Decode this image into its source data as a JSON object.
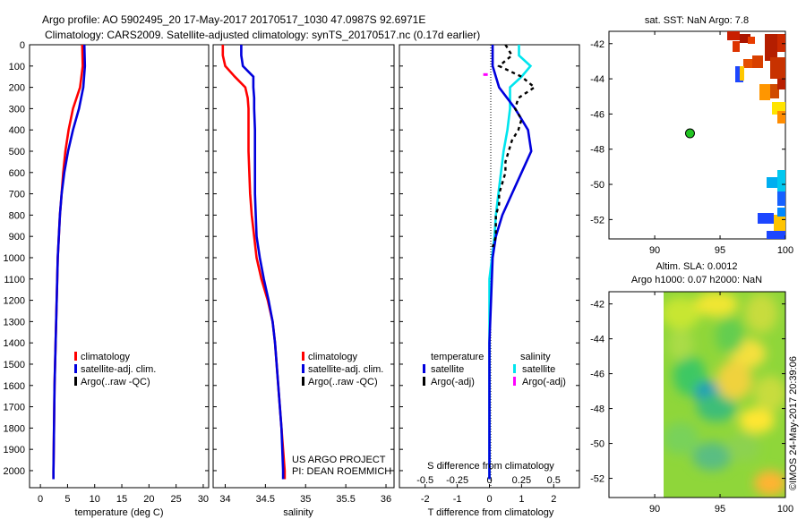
{
  "header": {
    "line1": "Argo profile: AO 5902495_20 17-May-2017 20170517_1030 47.0987S 92.6971E",
    "line2": "Climatology: CARS2009. Satellite-adjusted climatology: synTS_20170517.nc (0.17d earlier)"
  },
  "colors": {
    "climatology": "#ff0000",
    "satellite": "#0000dd",
    "argo": "#000000",
    "sat_salinity": "#00e5ee",
    "argo_salinity": "#ff00ff"
  },
  "chart_data": [
    {
      "type": "line",
      "panel": "temperature",
      "xlabel": "temperature (deg C)",
      "ylabel": "",
      "xlim": [
        -2,
        31
      ],
      "ylim": [
        2080,
        0
      ],
      "xticks": [
        "0",
        "5",
        "10",
        "15",
        "20",
        "25",
        "30"
      ],
      "yticks": [
        "0",
        "100",
        "200",
        "300",
        "400",
        "500",
        "600",
        "700",
        "800",
        "900",
        "1000",
        "1100",
        "1200",
        "1300",
        "1400",
        "1500",
        "1600",
        "1700",
        "1800",
        "1900",
        "2000"
      ],
      "legend": [
        "climatology",
        "satellite-adj. clim.",
        "Argo(..raw -QC)"
      ],
      "series": [
        {
          "name": "climatology",
          "y": [
            0,
            100,
            200,
            300,
            400,
            500,
            600,
            700,
            800,
            900,
            1000,
            1200,
            1400,
            1600,
            1800,
            2000,
            2040
          ],
          "values": [
            7.7,
            7.8,
            7.3,
            6.0,
            5.2,
            4.6,
            4.2,
            3.9,
            3.6,
            3.4,
            3.2,
            3.0,
            2.8,
            2.6,
            2.5,
            2.4,
            2.4
          ]
        },
        {
          "name": "satellite-adj. clim.",
          "y": [
            0,
            100,
            200,
            300,
            400,
            500,
            600,
            700,
            800,
            900,
            1000,
            1200,
            1400,
            1600,
            1800,
            2000,
            2040
          ],
          "values": [
            8.1,
            8.2,
            7.9,
            7.1,
            6.0,
            5.1,
            4.4,
            3.9,
            3.6,
            3.4,
            3.2,
            3.0,
            2.8,
            2.6,
            2.5,
            2.4,
            2.4
          ]
        }
      ]
    },
    {
      "type": "line",
      "panel": "salinity",
      "xlabel": "salinity",
      "xlim": [
        33.85,
        36.1
      ],
      "ylim": [
        2080,
        0
      ],
      "xticks": [
        "34",
        "34.5",
        "35",
        "35.5",
        "36"
      ],
      "legend": [
        "climatology",
        "satellite-adj. clim.",
        "Argo(..raw -QC)"
      ],
      "annotations": [
        "US ARGO PROJECT",
        "PI: DEAN ROEMMICH"
      ],
      "series": [
        {
          "name": "climatology",
          "y": [
            0,
            50,
            100,
            150,
            200,
            250,
            300,
            400,
            500,
            600,
            700,
            800,
            900,
            1000,
            1100,
            1200,
            1300,
            1400,
            1500,
            1600,
            1700,
            1800,
            1900,
            2000,
            2040
          ],
          "values": [
            33.97,
            33.97,
            34.0,
            34.12,
            34.25,
            34.28,
            34.29,
            34.29,
            34.29,
            34.3,
            34.31,
            34.33,
            34.36,
            34.39,
            34.45,
            34.53,
            34.59,
            34.62,
            34.64,
            34.66,
            34.68,
            34.7,
            34.72,
            34.74,
            34.74
          ]
        },
        {
          "name": "satellite-adj. clim.",
          "y": [
            0,
            50,
            100,
            150,
            200,
            250,
            300,
            400,
            500,
            600,
            700,
            800,
            900,
            1000,
            1100,
            1200,
            1300,
            1400,
            1500,
            1600,
            1700,
            1800,
            1900,
            2000,
            2040
          ],
          "values": [
            34.2,
            34.2,
            34.22,
            34.35,
            34.35,
            34.36,
            34.36,
            34.37,
            34.37,
            34.37,
            34.37,
            34.38,
            34.39,
            34.43,
            34.48,
            34.54,
            34.59,
            34.62,
            34.64,
            34.66,
            34.68,
            34.7,
            34.71,
            34.72,
            34.72
          ]
        }
      ]
    },
    {
      "type": "line",
      "panel": "differences",
      "xlabel": "T difference from climatology",
      "x2label": "S difference from climatology",
      "xlim": [
        -2.8,
        2.8
      ],
      "ylim": [
        2080,
        0
      ],
      "xticks": [
        "-2",
        "-1",
        "0",
        "1",
        "2"
      ],
      "x2ticks": [
        "-0.5",
        "-0.25",
        "0",
        "0.25",
        "0.5"
      ],
      "legend_headers": [
        "temperature",
        "salinity"
      ],
      "legend": [
        "satellite",
        "Argo(-adj)",
        "satellite",
        "Argo(-adj)"
      ],
      "series": [
        {
          "name": "T satellite",
          "y": [
            0,
            100,
            200,
            300,
            400,
            500,
            600,
            700,
            800,
            900,
            1000,
            1200,
            1400,
            1600,
            1800,
            2000,
            2040
          ],
          "values": [
            0.1,
            0.1,
            0.3,
            0.8,
            1.2,
            1.3,
            1.0,
            0.7,
            0.4,
            0.2,
            0.1,
            0.05,
            0.0,
            0.0,
            0.0,
            0.0,
            0.0
          ]
        },
        {
          "name": "S satellite",
          "y": [
            0,
            50,
            100,
            150,
            200,
            300,
            400,
            500,
            600,
            700,
            800,
            900,
            1000,
            1100,
            1200,
            1300,
            1400,
            1500,
            1600,
            1800,
            2000,
            2040
          ],
          "values": [
            0.23,
            0.23,
            0.32,
            0.25,
            0.16,
            0.16,
            0.14,
            0.11,
            0.09,
            0.07,
            0.05,
            0.04,
            0.02,
            0.0,
            0.0,
            0.0,
            0.0,
            0.0,
            0.0,
            0.0,
            0.0,
            0.0
          ]
        },
        {
          "name": "T Argo(-adj)",
          "y": [
            0,
            50,
            100,
            150,
            200,
            250,
            300,
            350,
            400,
            450,
            500,
            550,
            600,
            650,
            700,
            750,
            800,
            850,
            900,
            950
          ],
          "values": [
            0.5,
            0.7,
            0.3,
            1.0,
            1.4,
            0.9,
            0.8,
            1.0,
            0.9,
            0.7,
            0.6,
            0.5,
            0.5,
            0.4,
            0.3,
            0.3,
            0.2,
            0.2,
            0.2,
            0.1
          ]
        },
        {
          "name": "S Argo(-adj)",
          "y": [
            140
          ],
          "values": [
            -0.02
          ]
        }
      ]
    },
    {
      "type": "heatmap",
      "panel": "sst",
      "title": "sat. SST: NaN Argo: 7.8",
      "xticks": [
        "90",
        "95",
        "100"
      ],
      "yticks": [
        "-42",
        "-44",
        "-46",
        "-48",
        "-50",
        "-52"
      ],
      "xlim": [
        86.5,
        100
      ],
      "ylim": [
        -53.1,
        -41.3
      ],
      "point": {
        "lon": 92.7,
        "lat": -47.1
      }
    },
    {
      "type": "heatmap",
      "panel": "sla",
      "title1": "Altim. SLA: 0.0012",
      "title2": "Argo h1000: 0.07 h2000: NaN",
      "xticks": [
        "90",
        "95",
        "100"
      ],
      "yticks": [
        "-42",
        "-44",
        "-46",
        "-48",
        "-50",
        "-52"
      ],
      "xlim": [
        86.5,
        100
      ],
      "ylim": [
        -53.1,
        -41.3
      ]
    }
  ],
  "footer": {
    "side_stamp": "©IMOS 24-May-2017 20:39:06"
  }
}
